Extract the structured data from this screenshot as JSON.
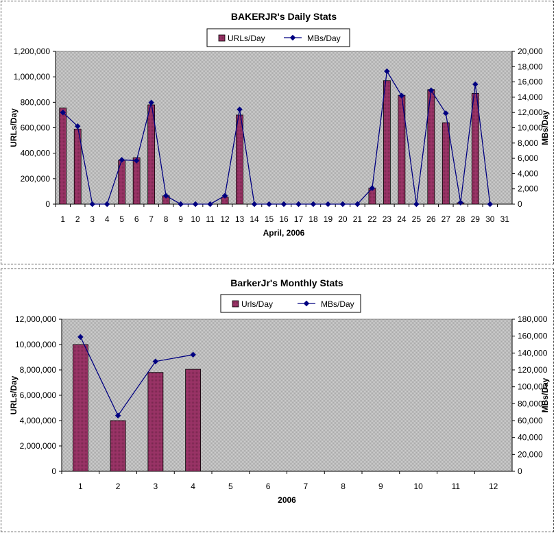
{
  "colors": {
    "plot_bg": "#c0c0c0",
    "bar_fill": "#993366",
    "line": "#000080",
    "text": "#000000"
  },
  "chart_data": [
    {
      "type": "bar",
      "title": "BAKERJR's Daily Stats",
      "xlabel": "April, 2006",
      "ylabel": "URLs/Day",
      "y2label": "MBs/Day",
      "legend_position": "top-center",
      "grid": false,
      "categories": [
        "1",
        "2",
        "3",
        "4",
        "5",
        "6",
        "7",
        "8",
        "9",
        "10",
        "11",
        "12",
        "13",
        "14",
        "15",
        "16",
        "17",
        "18",
        "19",
        "20",
        "21",
        "22",
        "23",
        "24",
        "25",
        "26",
        "27",
        "28",
        "29",
        "30",
        "31"
      ],
      "ylim": [
        0,
        1200000
      ],
      "y2lim": [
        0,
        20000
      ],
      "y_ticks": [
        "0",
        "200,000",
        "400,000",
        "600,000",
        "800,000",
        "1,000,000",
        "1,200,000"
      ],
      "y2_ticks": [
        "0",
        "2,000",
        "4,000",
        "6,000",
        "8,000",
        "10,000",
        "12,000",
        "14,000",
        "16,000",
        "18,000",
        "20,000"
      ],
      "series": [
        {
          "name": "URLs/Day",
          "kind": "bar",
          "axis": "left",
          "values": [
            755000,
            590000,
            0,
            0,
            345000,
            365000,
            780000,
            65000,
            0,
            0,
            0,
            55000,
            700000,
            0,
            0,
            0,
            0,
            0,
            0,
            0,
            0,
            125000,
            970000,
            855000,
            0,
            900000,
            640000,
            10000,
            870000,
            0,
            0
          ]
        },
        {
          "name": "MBs/Day",
          "kind": "line",
          "axis": "right",
          "values": [
            12000,
            10200,
            0,
            0,
            5800,
            5700,
            13300,
            1100,
            0,
            0,
            0,
            1100,
            12400,
            0,
            0,
            0,
            0,
            0,
            0,
            0,
            0,
            2100,
            17400,
            14200,
            0,
            14900,
            11900,
            200,
            15700,
            0,
            null
          ]
        }
      ]
    },
    {
      "type": "bar",
      "title": "BarkerJr's Monthly Stats",
      "xlabel": "2006",
      "ylabel": "URLs/Day",
      "y2label": "MBs/Day",
      "legend_position": "top-center",
      "grid": false,
      "categories": [
        "1",
        "2",
        "3",
        "4",
        "5",
        "6",
        "7",
        "8",
        "9",
        "10",
        "11",
        "12"
      ],
      "ylim": [
        0,
        12000000
      ],
      "y2lim": [
        0,
        180000
      ],
      "y_ticks": [
        "0",
        "2,000,000",
        "4,000,000",
        "6,000,000",
        "8,000,000",
        "10,000,000",
        "12,000,000"
      ],
      "y2_ticks": [
        "0",
        "20,000",
        "40,000",
        "60,000",
        "80,000",
        "100,000",
        "120,000",
        "140,000",
        "160,000",
        "180,000"
      ],
      "series": [
        {
          "name": "Urls/Day",
          "kind": "bar",
          "axis": "left",
          "values": [
            10000000,
            4000000,
            7800000,
            8050000,
            null,
            null,
            null,
            null,
            null,
            null,
            null,
            null
          ]
        },
        {
          "name": "MBs/Day",
          "kind": "line",
          "axis": "right",
          "values": [
            159000,
            66000,
            130000,
            138000,
            null,
            null,
            null,
            null,
            null,
            null,
            null,
            null
          ]
        }
      ]
    }
  ]
}
